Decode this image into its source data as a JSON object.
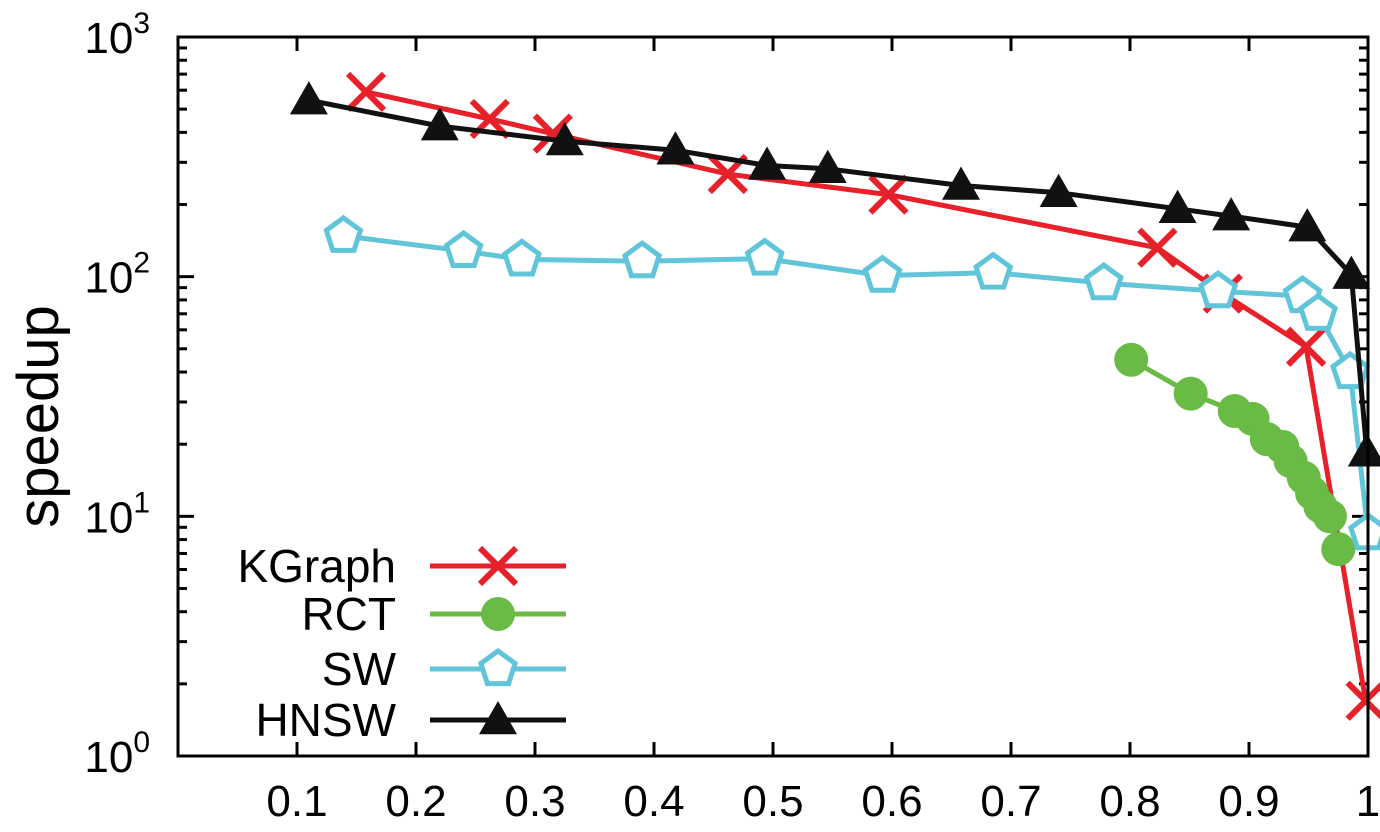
{
  "chart_data": {
    "type": "line",
    "xlabel": "",
    "ylabel": "speedup",
    "yscale": "log",
    "xlim": [
      0.0,
      1.0
    ],
    "ylim": [
      1,
      1000
    ],
    "x_ticks": [
      "0.1",
      "0.2",
      "0.3",
      "0.4",
      "0.5",
      "0.6",
      "0.7",
      "0.8",
      "0.9",
      "1"
    ],
    "y_ticks": [
      {
        "base": "10",
        "exp": "0"
      },
      {
        "base": "10",
        "exp": "1"
      },
      {
        "base": "10",
        "exp": "2"
      },
      {
        "base": "10",
        "exp": "3"
      }
    ],
    "grid": false,
    "legend_position": "bottom-left",
    "series": [
      {
        "name": "KGraph",
        "color": "#e8202a",
        "marker": "x",
        "points": [
          [
            0.158,
            590
          ],
          [
            0.262,
            455
          ],
          [
            0.315,
            395
          ],
          [
            0.462,
            268
          ],
          [
            0.597,
            220
          ],
          [
            0.823,
            132
          ],
          [
            0.878,
            85
          ],
          [
            0.948,
            51
          ],
          [
            0.998,
            1.7
          ]
        ]
      },
      {
        "name": "RCT",
        "color": "#69bb45",
        "marker": "circle",
        "points": [
          [
            0.801,
            45
          ],
          [
            0.851,
            32.5
          ],
          [
            0.888,
            27.5
          ],
          [
            0.903,
            25.5
          ],
          [
            0.915,
            21
          ],
          [
            0.928,
            19.5
          ],
          [
            0.935,
            17
          ],
          [
            0.946,
            14.5
          ],
          [
            0.953,
            12.5
          ],
          [
            0.96,
            11
          ],
          [
            0.968,
            10
          ],
          [
            0.975,
            7.3
          ]
        ]
      },
      {
        "name": "SW",
        "color": "#61c5da",
        "marker": "pentagon",
        "points": [
          [
            0.139,
            148
          ],
          [
            0.24,
            128
          ],
          [
            0.289,
            118
          ],
          [
            0.39,
            116
          ],
          [
            0.493,
            119
          ],
          [
            0.592,
            101
          ],
          [
            0.685,
            104
          ],
          [
            0.778,
            94
          ],
          [
            0.874,
            87
          ],
          [
            0.945,
            83
          ],
          [
            0.958,
            70
          ],
          [
            0.985,
            40
          ],
          [
            1.0,
            8.5
          ]
        ]
      },
      {
        "name": "HNSW",
        "color": "#111111",
        "marker": "triangle",
        "points": [
          [
            0.11,
            545
          ],
          [
            0.22,
            425
          ],
          [
            0.325,
            368
          ],
          [
            0.418,
            337
          ],
          [
            0.495,
            291
          ],
          [
            0.546,
            282
          ],
          [
            0.658,
            240
          ],
          [
            0.74,
            224
          ],
          [
            0.84,
            192
          ],
          [
            0.885,
            179
          ],
          [
            0.949,
            161
          ],
          [
            0.986,
            102
          ],
          [
            0.999,
            18.5
          ]
        ]
      }
    ]
  }
}
